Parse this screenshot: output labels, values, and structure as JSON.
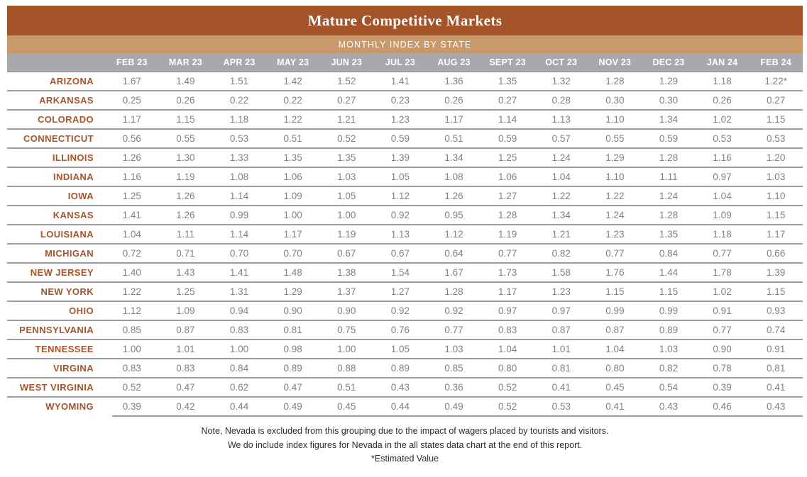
{
  "header": {
    "title": "Mature Competitive Markets",
    "subtitle": "MONTHLY INDEX BY STATE"
  },
  "chart_data": {
    "type": "table",
    "title": "Mature Competitive Markets",
    "subtitle": "MONTHLY INDEX BY STATE",
    "columns": [
      "FEB 23",
      "MAR 23",
      "APR 23",
      "MAY 23",
      "JUN 23",
      "JUL 23",
      "AUG 23",
      "SEPT 23",
      "OCT 23",
      "NOV 23",
      "DEC 23",
      "JAN 24",
      "FEB 24"
    ],
    "rows": [
      {
        "state": "ARIZONA",
        "values": [
          "1.67",
          "1.49",
          "1.51",
          "1.42",
          "1.52",
          "1.41",
          "1.36",
          "1.35",
          "1.32",
          "1.28",
          "1.29",
          "1.18",
          "1.22*"
        ]
      },
      {
        "state": "ARKANSAS",
        "values": [
          "0.25",
          "0.26",
          "0.22",
          "0.22",
          "0.27",
          "0.23",
          "0.26",
          "0.27",
          "0.28",
          "0.30",
          "0.30",
          "0.26",
          "0.27"
        ]
      },
      {
        "state": "COLORADO",
        "values": [
          "1.17",
          "1.15",
          "1.18",
          "1.22",
          "1.21",
          "1.23",
          "1.17",
          "1.14",
          "1.13",
          "1.10",
          "1.34",
          "1.02",
          "1.15"
        ]
      },
      {
        "state": "CONNECTICUT",
        "values": [
          "0.56",
          "0.55",
          "0.53",
          "0.51",
          "0.52",
          "0.59",
          "0.51",
          "0.59",
          "0.57",
          "0.55",
          "0.59",
          "0.53",
          "0.53"
        ]
      },
      {
        "state": "ILLINOIS",
        "values": [
          "1.26",
          "1.30",
          "1.33",
          "1.35",
          "1.35",
          "1.39",
          "1.34",
          "1.25",
          "1.24",
          "1.29",
          "1.28",
          "1.16",
          "1.20"
        ]
      },
      {
        "state": "INDIANA",
        "values": [
          "1.16",
          "1.19",
          "1.08",
          "1.06",
          "1.03",
          "1.05",
          "1.08",
          "1.06",
          "1.04",
          "1.10",
          "1.11",
          "0.97",
          "1.03"
        ]
      },
      {
        "state": "IOWA",
        "values": [
          "1.25",
          "1.26",
          "1.14",
          "1.09",
          "1.05",
          "1.12",
          "1.26",
          "1.27",
          "1.22",
          "1.22",
          "1.24",
          "1.04",
          "1.10"
        ]
      },
      {
        "state": "KANSAS",
        "values": [
          "1.41",
          "1.26",
          "0.99",
          "1.00",
          "1.00",
          "0.92",
          "0.95",
          "1.28",
          "1.34",
          "1.24",
          "1.28",
          "1.09",
          "1.15"
        ]
      },
      {
        "state": "LOUISIANA",
        "values": [
          "1.04",
          "1.11",
          "1.14",
          "1.17",
          "1.19",
          "1.13",
          "1.12",
          "1.19",
          "1.21",
          "1.23",
          "1.35",
          "1.18",
          "1.17"
        ]
      },
      {
        "state": "MICHIGAN",
        "values": [
          "0.72",
          "0.71",
          "0.70",
          "0.70",
          "0.67",
          "0.67",
          "0.64",
          "0.77",
          "0.82",
          "0.77",
          "0.84",
          "0.77",
          "0.66"
        ]
      },
      {
        "state": "NEW JERSEY",
        "values": [
          "1.40",
          "1.43",
          "1.41",
          "1.48",
          "1.38",
          "1.54",
          "1.67",
          "1.73",
          "1.58",
          "1.76",
          "1.44",
          "1.78",
          "1.39"
        ]
      },
      {
        "state": "NEW YORK",
        "values": [
          "1.22",
          "1.25",
          "1.31",
          "1.29",
          "1.37",
          "1.27",
          "1.28",
          "1.17",
          "1.23",
          "1.15",
          "1.15",
          "1.02",
          "1.15"
        ]
      },
      {
        "state": "OHIO",
        "values": [
          "1.12",
          "1.09",
          "0.94",
          "0.90",
          "0.90",
          "0.92",
          "0.92",
          "0.97",
          "0.97",
          "0.99",
          "0.99",
          "0.91",
          "0.93"
        ]
      },
      {
        "state": "PENNSYLVANIA",
        "values": [
          "0.85",
          "0.87",
          "0.83",
          "0.81",
          "0.75",
          "0.76",
          "0.77",
          "0.83",
          "0.87",
          "0.87",
          "0.89",
          "0.77",
          "0.74"
        ]
      },
      {
        "state": "TENNESSEE",
        "values": [
          "1.00",
          "1.01",
          "1.00",
          "0.98",
          "1.00",
          "1.05",
          "1.03",
          "1.04",
          "1.01",
          "1.04",
          "1.03",
          "0.90",
          "0.91"
        ]
      },
      {
        "state": "VIRGINA",
        "values": [
          "0.83",
          "0.83",
          "0.84",
          "0.89",
          "0.88",
          "0.89",
          "0.85",
          "0.80",
          "0.81",
          "0.80",
          "0.82",
          "0.78",
          "0.81"
        ]
      },
      {
        "state": "WEST VIRGINIA",
        "values": [
          "0.52",
          "0.47",
          "0.62",
          "0.47",
          "0.51",
          "0.43",
          "0.36",
          "0.52",
          "0.41",
          "0.45",
          "0.54",
          "0.39",
          "0.41"
        ]
      },
      {
        "state": "WYOMING",
        "values": [
          "0.39",
          "0.42",
          "0.44",
          "0.49",
          "0.45",
          "0.44",
          "0.49",
          "0.52",
          "0.53",
          "0.41",
          "0.43",
          "0.46",
          "0.43"
        ]
      }
    ],
    "notes": [
      "Note, Nevada is excluded from this grouping due to the impact of wagers placed by tourists and visitors.",
      "We do include index figures for Nevada in the all states data chart at the end of this report.",
      "*Estimated Value"
    ]
  },
  "colors": {
    "title_bar": "#A5542A",
    "subtitle_bar": "#C9996B",
    "column_header_bar": "#A8A9AD",
    "state_label": "#A6552C",
    "value_text": "#808184",
    "row_rule": "#9C9DA0"
  }
}
